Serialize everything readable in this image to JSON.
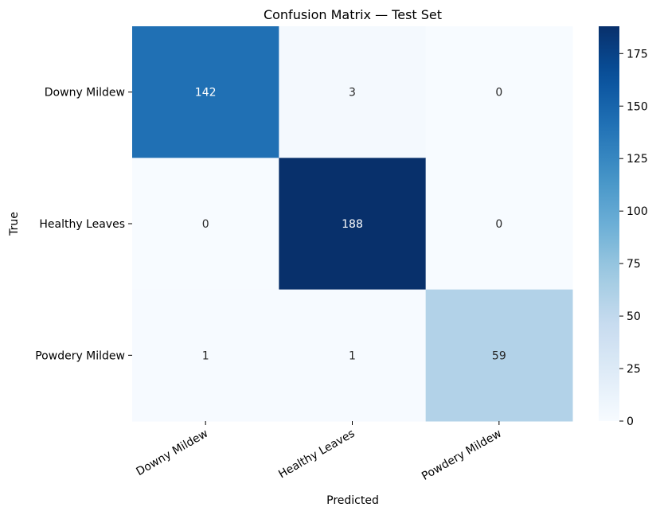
{
  "chart_data": {
    "type": "heatmap",
    "title": "Confusion Matrix — Test Set",
    "xlabel": "Predicted",
    "ylabel": "True",
    "x_categories": [
      "Downy Mildew",
      "Healthy Leaves",
      "Powdery Mildew"
    ],
    "y_categories": [
      "Downy Mildew",
      "Healthy Leaves",
      "Powdery Mildew"
    ],
    "values": [
      [
        142,
        3,
        0
      ],
      [
        0,
        188,
        0
      ],
      [
        1,
        1,
        59
      ]
    ],
    "colormap": "Blues",
    "vmin": 0,
    "vmax": 188,
    "colorbar_ticks": [
      0,
      25,
      50,
      75,
      100,
      125,
      150,
      175
    ],
    "colorbar_tick_labels": [
      "0",
      "25",
      "50",
      "75",
      "100",
      "125",
      "150",
      "175"
    ],
    "colorbar_position": "right",
    "grid": false
  }
}
